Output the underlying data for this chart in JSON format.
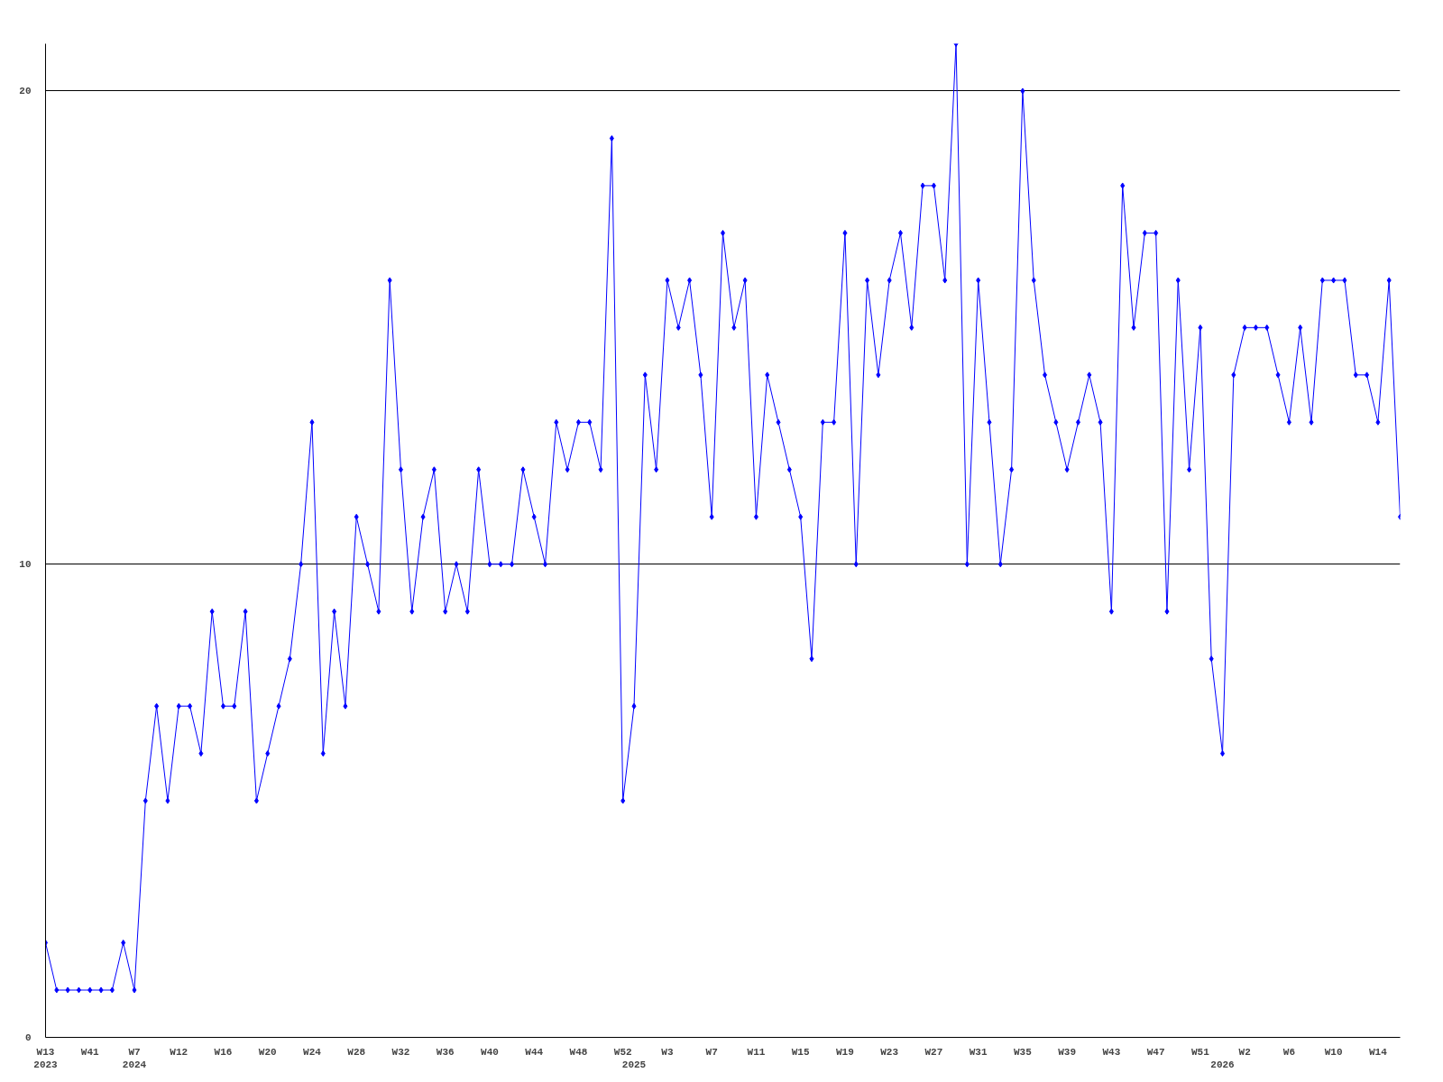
{
  "chart_data": {
    "type": "line",
    "categories": [
      "W13\n2023",
      null,
      null,
      null,
      "W41",
      null,
      null,
      null,
      "W7\n2024",
      null,
      null,
      null,
      "W12",
      null,
      null,
      null,
      "W16",
      null,
      null,
      null,
      "W20",
      null,
      null,
      null,
      "W24",
      null,
      null,
      null,
      "W28",
      null,
      null,
      null,
      "W32",
      null,
      null,
      null,
      "W36",
      null,
      null,
      null,
      "W40",
      null,
      null,
      null,
      "W44",
      null,
      null,
      null,
      "W48",
      null,
      null,
      null,
      "W52",
      "\n2025",
      null,
      null,
      "W3",
      null,
      null,
      null,
      "W7",
      null,
      null,
      null,
      "W11",
      null,
      null,
      null,
      "W15",
      null,
      null,
      null,
      "W19",
      null,
      null,
      null,
      "W23",
      null,
      null,
      null,
      "W27",
      null,
      null,
      null,
      "W31",
      null,
      null,
      null,
      "W35",
      null,
      null,
      null,
      "W39",
      null,
      null,
      null,
      "W43",
      null,
      null,
      null,
      "W47",
      null,
      null,
      null,
      "W51",
      null,
      "\n2026",
      null,
      "W2",
      null,
      null,
      null,
      "W6",
      null,
      null,
      null,
      "W10",
      null,
      null,
      null,
      "W14",
      null,
      null
    ],
    "series": [
      {
        "color": "#0000ff",
        "values": [
          2,
          1,
          1,
          1,
          1,
          1,
          1,
          2,
          1,
          5,
          7,
          5,
          7,
          7,
          6,
          9,
          7,
          7,
          9,
          5,
          6,
          7,
          8,
          10,
          13,
          6,
          9,
          7,
          11,
          10,
          9,
          16,
          12,
          9,
          11,
          12,
          9,
          10,
          9,
          12,
          10,
          10,
          10,
          12,
          11,
          10,
          13,
          12,
          13,
          13,
          12,
          19,
          5,
          7,
          14,
          12,
          16,
          15,
          16,
          14,
          11,
          17,
          15,
          16,
          11,
          14,
          13,
          12,
          11,
          8,
          13,
          13,
          17,
          10,
          16,
          14,
          16,
          17,
          15,
          18,
          18,
          16,
          21,
          10,
          16,
          13,
          10,
          12,
          20,
          16,
          14,
          13,
          12,
          13,
          14,
          13,
          9,
          18,
          15,
          17,
          17,
          9,
          16,
          12,
          15,
          8,
          6,
          14,
          15,
          15,
          15,
          14,
          13,
          15,
          13,
          16,
          16,
          16,
          14,
          14,
          13,
          16,
          11
        ]
      }
    ],
    "ylim": [
      0,
      21
    ],
    "yticks": [
      0,
      10,
      20
    ],
    "grid": "y",
    "marker": "diamond",
    "line_style": "solid"
  }
}
